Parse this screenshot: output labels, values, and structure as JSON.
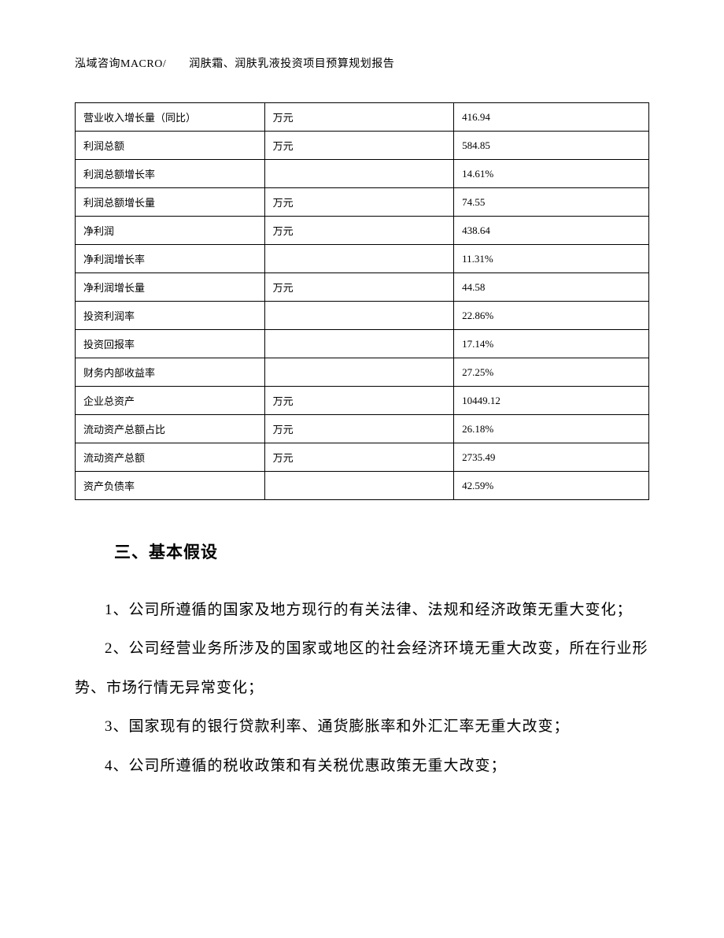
{
  "header": {
    "text": "泓域咨询MACRO/　　润肤霜、润肤乳液投资项目预算规划报告"
  },
  "table": {
    "rows": [
      {
        "label": "营业收入增长量（同比）",
        "unit": "万元",
        "value": "416.94"
      },
      {
        "label": "利润总额",
        "unit": "万元",
        "value": "584.85"
      },
      {
        "label": "利润总额增长率",
        "unit": "",
        "value": "14.61%"
      },
      {
        "label": "利润总额增长量",
        "unit": "万元",
        "value": "74.55"
      },
      {
        "label": "净利润",
        "unit": "万元",
        "value": "438.64"
      },
      {
        "label": "净利润增长率",
        "unit": "",
        "value": "11.31%"
      },
      {
        "label": "净利润增长量",
        "unit": "万元",
        "value": "44.58"
      },
      {
        "label": "投资利润率",
        "unit": "",
        "value": "22.86%"
      },
      {
        "label": "投资回报率",
        "unit": "",
        "value": "17.14%"
      },
      {
        "label": "财务内部收益率",
        "unit": "",
        "value": "27.25%"
      },
      {
        "label": "企业总资产",
        "unit": "万元",
        "value": "10449.12"
      },
      {
        "label": "流动资产总额占比",
        "unit": "万元",
        "value": "26.18%"
      },
      {
        "label": "流动资产总额",
        "unit": "万元",
        "value": "2735.49"
      },
      {
        "label": "资产负债率",
        "unit": "",
        "value": "42.59%"
      }
    ]
  },
  "section": {
    "heading": "三、基本假设",
    "paragraphs": [
      "1、公司所遵循的国家及地方现行的有关法律、法规和经济政策无重大变化；",
      "2、公司经营业务所涉及的国家或地区的社会经济环境无重大改变，所在行业形势、市场行情无异常变化；",
      "3、国家现有的银行贷款利率、通货膨胀率和外汇汇率无重大改变；",
      "4、公司所遵循的税收政策和有关税优惠政策无重大改变；"
    ]
  }
}
